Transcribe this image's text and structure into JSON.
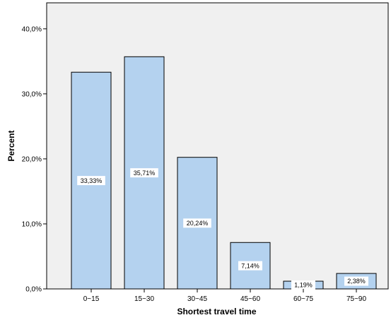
{
  "chart_data": {
    "type": "bar",
    "categories": [
      "0~15",
      "15~30",
      "30~45",
      "45~60",
      "60~75",
      "75~90"
    ],
    "values": [
      33.33,
      35.71,
      20.24,
      7.14,
      1.19,
      2.38
    ],
    "data_labels": [
      "33,33%",
      "35,71%",
      "20,24%",
      "7,14%",
      "1,19%",
      "2,38%"
    ],
    "y_tick_values": [
      0,
      10,
      20,
      30,
      40
    ],
    "y_tick_labels": [
      "0,0%",
      "10,0%",
      "20,0%",
      "30,0%",
      "40,0%"
    ],
    "ylim": [
      0,
      44
    ],
    "xlabel": "Shortest travel time",
    "ylabel": "Percent",
    "grid": false,
    "colors": {
      "plot_background": "#f0f0f0",
      "bar_fill": "#b4d2ef",
      "bar_stroke": "#000000",
      "axis": "#000000",
      "label_box": "#ffffff"
    }
  }
}
